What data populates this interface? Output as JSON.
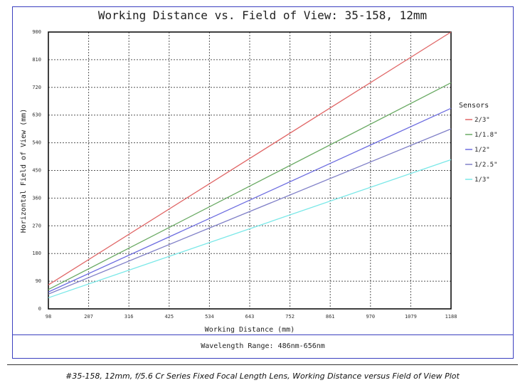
{
  "chart_data": {
    "type": "line",
    "title": "Working Distance vs. Field of View: 35-158, 12mm",
    "xlabel": "Working Distance (mm)",
    "ylabel": "Horizontal Field of View (mm)",
    "xlim": [
      98,
      1188
    ],
    "ylim": [
      0,
      900
    ],
    "x_ticks": [
      "98",
      "207",
      "316",
      "425",
      "534",
      "643",
      "752",
      "861",
      "970",
      "1079",
      "1188"
    ],
    "y_ticks": [
      "0",
      "90",
      "180",
      "270",
      "360",
      "450",
      "540",
      "630",
      "720",
      "810",
      "900"
    ],
    "grid": true,
    "legend_title": "Sensors",
    "legend_position": "right",
    "series": [
      {
        "name": "2/3\"",
        "color": "#e06666",
        "x": [
          98,
          1188
        ],
        "y": [
          78,
          900
        ]
      },
      {
        "name": "1/1.8\"",
        "color": "#6aaa64",
        "x": [
          98,
          1188
        ],
        "y": [
          63,
          735
        ]
      },
      {
        "name": "1/2\"",
        "color": "#6d6de0",
        "x": [
          98,
          1188
        ],
        "y": [
          55,
          652
        ]
      },
      {
        "name": "1/2.5\"",
        "color": "#8080c8",
        "x": [
          98,
          1188
        ],
        "y": [
          48,
          585
        ]
      },
      {
        "name": "1/3\"",
        "color": "#7ae8e8",
        "x": [
          98,
          1188
        ],
        "y": [
          36,
          485
        ]
      }
    ]
  },
  "footer": {
    "wavelength": "Wavelength Range: 486nm-656nm"
  },
  "caption": "#35-158, 12mm, f/5.6 Cr Series Fixed Focal Length Lens, Working Distance versus Field of View Plot"
}
